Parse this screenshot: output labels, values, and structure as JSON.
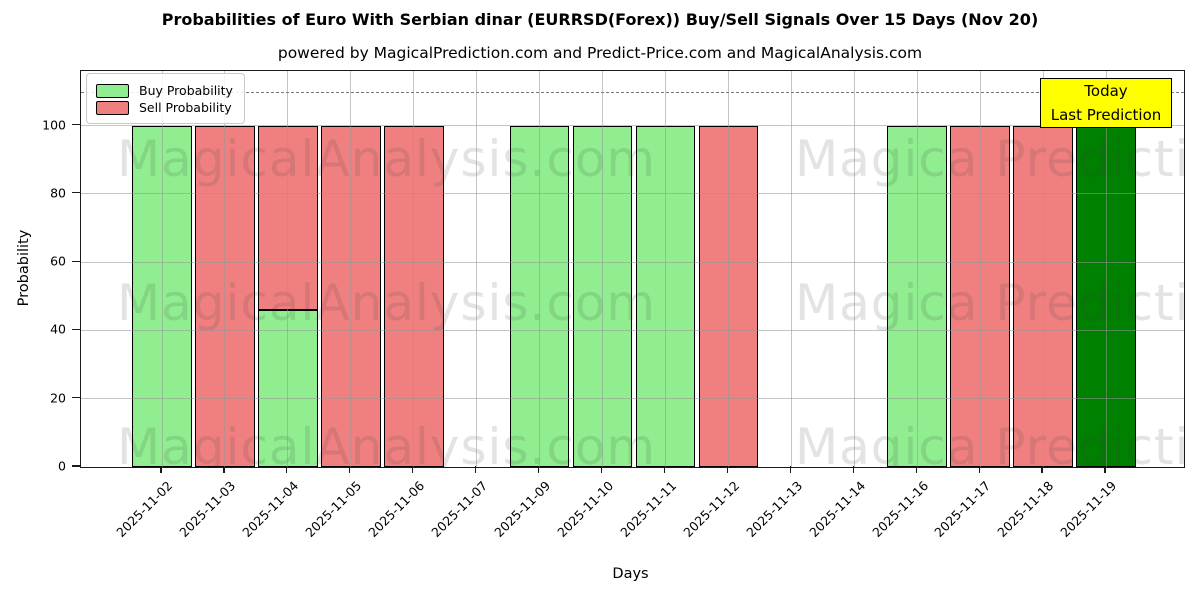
{
  "chart_data": {
    "type": "bar",
    "stacked": true,
    "title": "Probabilities of Euro With Serbian dinar (EURRSD(Forex)) Buy/Sell Signals Over 15 Days (Nov 20)",
    "subtitle": "powered by MagicalPrediction.com and Predict-Price.com and MagicalAnalysis.com",
    "xlabel": "Days",
    "ylabel": "Probability",
    "ylim": [
      0,
      116
    ],
    "yticks": [
      0,
      20,
      40,
      60,
      80,
      100
    ],
    "grid": true,
    "threshold_line": {
      "y": 110,
      "style": "dashed",
      "color": "#7a7a7a"
    },
    "categories": [
      "2025-11-02",
      "2025-11-03",
      "2025-11-04",
      "2025-11-05",
      "2025-11-06",
      "2025-11-07",
      "2025-11-09",
      "2025-11-10",
      "2025-11-11",
      "2025-11-12",
      "2025-11-13",
      "2025-11-14",
      "2025-11-16",
      "2025-11-17",
      "2025-11-18",
      "2025-11-19"
    ],
    "series": [
      {
        "name": "Buy Probability",
        "color": "#90ee90",
        "values": [
          100,
          0,
          46,
          0,
          0,
          0,
          100,
          100,
          100,
          0,
          0,
          0,
          100,
          0,
          0,
          0
        ]
      },
      {
        "name": "Sell Probability",
        "color": "#f08080",
        "values": [
          0,
          100,
          54,
          100,
          100,
          0,
          0,
          0,
          0,
          100,
          0,
          0,
          0,
          100,
          100,
          0
        ]
      },
      {
        "name": "Last Prediction (Today)",
        "color": "#008000",
        "values": [
          0,
          0,
          0,
          0,
          0,
          0,
          0,
          0,
          0,
          0,
          0,
          0,
          0,
          0,
          0,
          100
        ]
      }
    ],
    "legend": {
      "position": "top-left",
      "entries": [
        {
          "label": "Buy Probability",
          "color": "#90ee90"
        },
        {
          "label": "Sell Probability",
          "color": "#f08080"
        }
      ]
    },
    "annotation_box": {
      "lines": [
        "Today",
        "Last Prediction"
      ],
      "bg_color": "#ffff00",
      "border_color": "#000000",
      "anchor_category": "2025-11-19"
    },
    "watermark": {
      "texts": [
        "MagicalAnalysis.com",
        "Magica Prediction.com"
      ],
      "rows": 3
    },
    "bar_edge_color": "#000000"
  }
}
